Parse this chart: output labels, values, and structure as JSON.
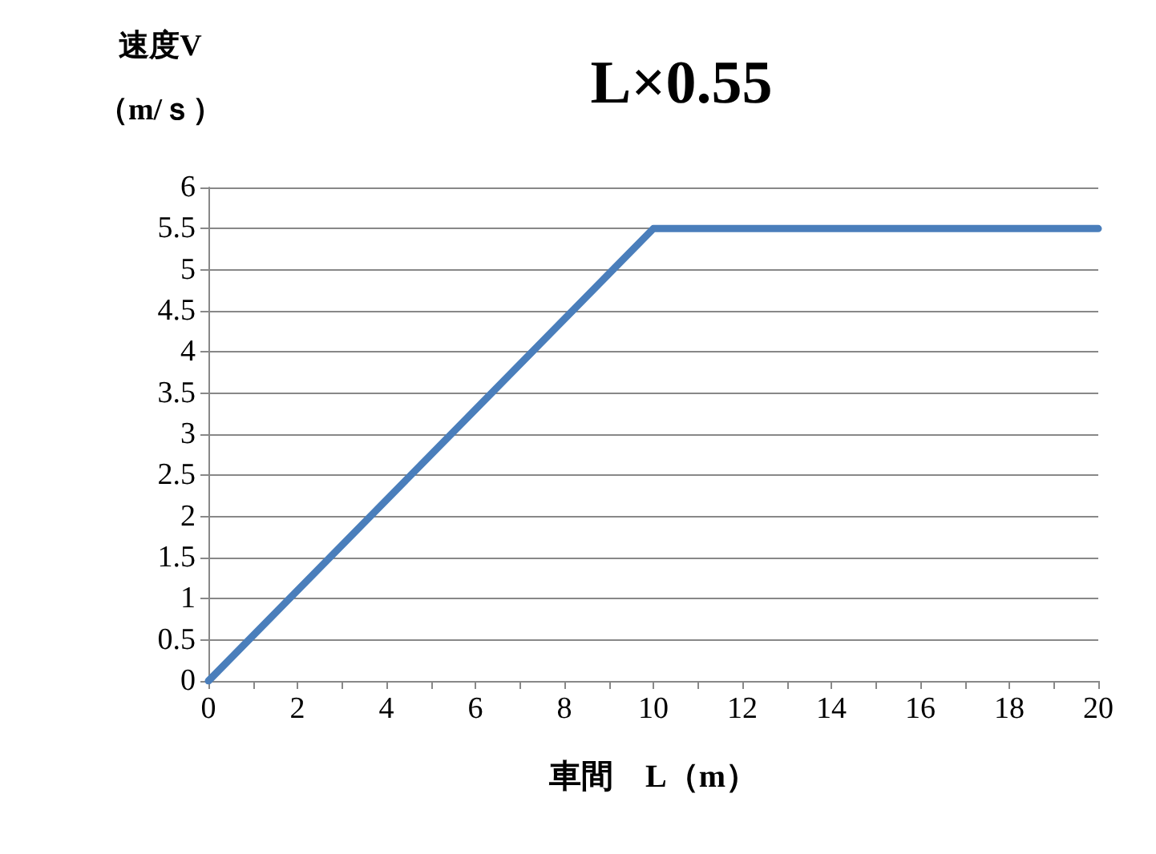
{
  "chart_data": {
    "type": "line",
    "title": "L×0.55",
    "xlabel": "車間　L（m）",
    "ylabel": "速度V\n（m/ｓ）",
    "x": [
      0,
      10,
      20
    ],
    "series": [
      {
        "color": "#4a7ebb",
        "values": [
          0,
          5.5,
          5.5
        ]
      }
    ],
    "xlim": [
      0,
      20
    ],
    "xticks": [
      0,
      {
        "value": 1,
        "label": null
      },
      2,
      {
        "value": 3,
        "label": null
      },
      4,
      {
        "value": 5,
        "label": null
      },
      6,
      {
        "value": 7,
        "label": null
      },
      8,
      {
        "value": 9,
        "label": null
      },
      10,
      {
        "value": 11,
        "label": null
      },
      12,
      {
        "value": 13,
        "label": null
      },
      14,
      {
        "value": 15,
        "label": null
      },
      16,
      {
        "value": 17,
        "label": null
      },
      18,
      {
        "value": 19,
        "label": null
      },
      20
    ],
    "ylim": [
      0,
      6
    ],
    "yticks": [
      0,
      0.5,
      1,
      1.5,
      2,
      2.5,
      3,
      3.5,
      4,
      4.5,
      5,
      5.5,
      6
    ],
    "grid": "y",
    "marker": "none",
    "line_style": "solid"
  }
}
